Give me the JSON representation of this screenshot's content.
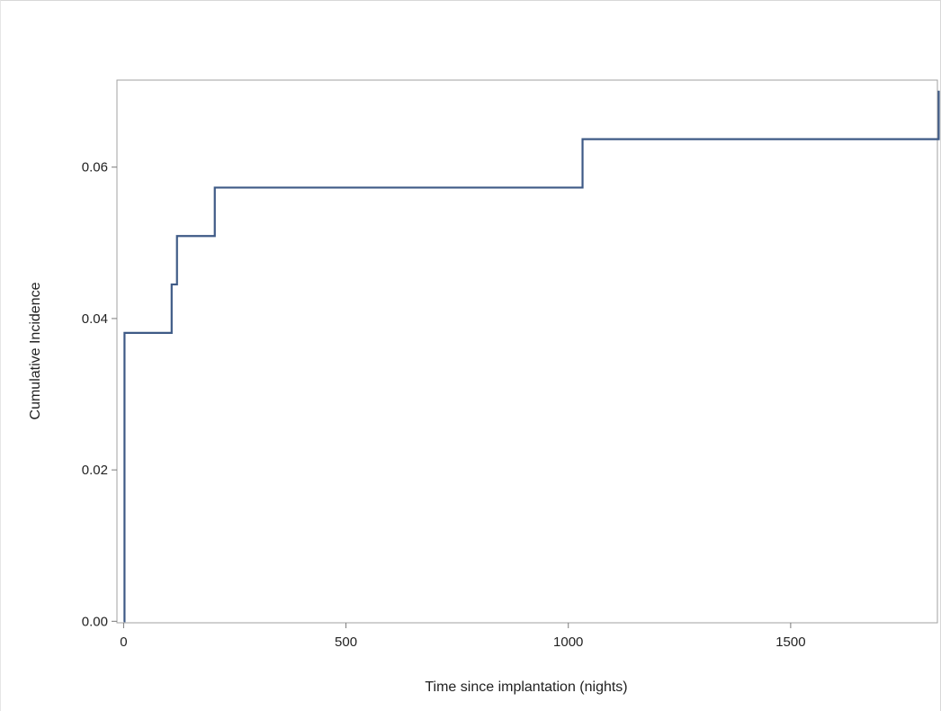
{
  "chart_data": {
    "type": "line",
    "title": "",
    "xlabel": "Time since implantation (nights)",
    "ylabel": "Cumulative Incidence",
    "xlim": [
      -15,
      1830
    ],
    "ylim": [
      -0.0002,
      0.0715
    ],
    "xticks": [
      0,
      500,
      1000,
      1500
    ],
    "xtick_labels": [
      "0",
      "500",
      "1000",
      "1500"
    ],
    "yticks": [
      0.0,
      0.02,
      0.04,
      0.06
    ],
    "ytick_labels": [
      "0.00",
      "0.02",
      "0.04",
      "0.06"
    ],
    "grid": false,
    "legend": "none",
    "step": true,
    "series": [
      {
        "line_color": "#3e5a86",
        "x": [
          0,
          2,
          108,
          113,
          120,
          205,
          1032,
          1833
        ],
        "y": [
          0.0,
          0.0381,
          0.0445,
          0.0445,
          0.0509,
          0.0573,
          0.0637,
          0.0701
        ]
      }
    ]
  }
}
